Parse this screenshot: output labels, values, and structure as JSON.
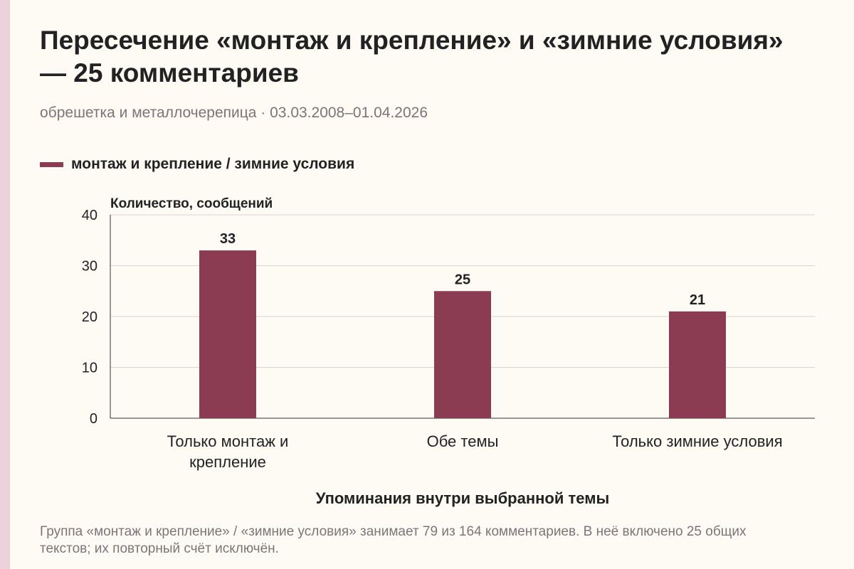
{
  "colors": {
    "bar": "#8b3c52",
    "background": "#fdfbf4",
    "strip": "#ecd3db"
  },
  "header": {
    "title": "Пересечение «монтаж и крепление» и «зимние условия» — 25 комментариев",
    "subtitle": "обрешетка и металлочерепица · 03.03.2008–01.04.2026"
  },
  "note": "Группа «монтаж и крепление» / «зимние условия» занимает 79 из 164 комментариев. В неё включено 25 общих текстов; их повторный счёт исключён.",
  "chart_data": {
    "type": "bar",
    "categories": [
      "Только монтаж и крепление",
      "Обе темы",
      "Только зимние условия"
    ],
    "series": [
      {
        "name": "монтаж и крепление / зимние условия",
        "values": [
          33,
          25,
          21
        ]
      }
    ],
    "ylabel": "Количество, сообщений",
    "xlabel": "Упоминания внутри выбранной темы",
    "ylim": [
      0,
      40
    ],
    "yticks": [
      0,
      10,
      20,
      30,
      40
    ],
    "grid": true,
    "legend_position": "top-left",
    "data_labels": true
  }
}
